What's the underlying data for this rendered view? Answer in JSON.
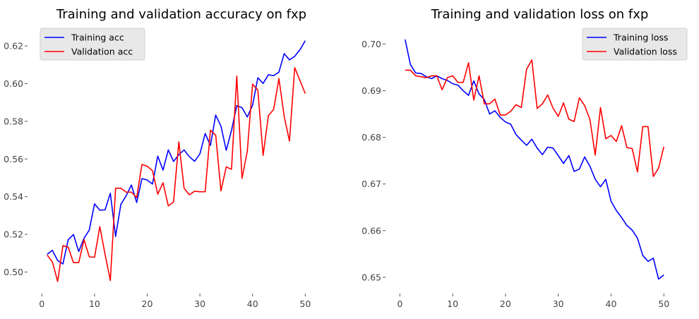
{
  "chart_data": [
    {
      "type": "line",
      "title": "Training and validation accuracy on fxp",
      "xlabel": "",
      "ylabel": "",
      "xlim": [
        -2.45,
        55.45
      ],
      "ylim": [
        0.4893,
        0.6294
      ],
      "xticks": [
        0,
        10,
        20,
        30,
        40,
        50
      ],
      "yticks": [
        0.5,
        0.52,
        0.54,
        0.56,
        0.58,
        0.6,
        0.62
      ],
      "ytick_labels": [
        "0.50",
        "0.52",
        "0.54",
        "0.56",
        "0.58",
        "0.60",
        "0.62"
      ],
      "grid": false,
      "legend_position": "upper-left",
      "x": [
        1,
        2,
        3,
        4,
        5,
        6,
        7,
        8,
        9,
        10,
        11,
        12,
        13,
        14,
        15,
        16,
        17,
        18,
        19,
        20,
        21,
        22,
        23,
        24,
        25,
        26,
        27,
        28,
        29,
        30,
        31,
        32,
        33,
        34,
        35,
        36,
        37,
        38,
        39,
        40,
        41,
        42,
        43,
        44,
        45,
        46,
        47,
        48,
        49,
        50
      ],
      "series": [
        {
          "name": "Training acc",
          "color": "#0000ff",
          "values": [
            0.5094,
            0.5115,
            0.5061,
            0.5043,
            0.5172,
            0.5199,
            0.5109,
            0.5179,
            0.5223,
            0.5362,
            0.5328,
            0.533,
            0.5418,
            0.5189,
            0.5359,
            0.5405,
            0.5462,
            0.5369,
            0.5496,
            0.5488,
            0.5467,
            0.5615,
            0.5541,
            0.5648,
            0.5587,
            0.5623,
            0.5648,
            0.5612,
            0.5588,
            0.5627,
            0.5735,
            0.5672,
            0.5833,
            0.5774,
            0.5646,
            0.5752,
            0.5883,
            0.5872,
            0.5823,
            0.5885,
            0.6031,
            0.6001,
            0.6047,
            0.6042,
            0.6061,
            0.6159,
            0.6126,
            0.6145,
            0.618,
            0.6228
          ]
        },
        {
          "name": "Validation acc",
          "color": "#ff0000",
          "values": [
            0.509,
            0.5054,
            0.495,
            0.514,
            0.5132,
            0.505,
            0.505,
            0.5172,
            0.5081,
            0.5078,
            0.5241,
            0.5094,
            0.4955,
            0.5445,
            0.5445,
            0.5424,
            0.5424,
            0.5395,
            0.5571,
            0.5561,
            0.5538,
            0.5413,
            0.5474,
            0.5351,
            0.5372,
            0.5691,
            0.5445,
            0.541,
            0.5429,
            0.5426,
            0.5426,
            0.5753,
            0.5726,
            0.5431,
            0.5558,
            0.5545,
            0.604,
            0.5497,
            0.5642,
            0.5997,
            0.5966,
            0.5619,
            0.583,
            0.5863,
            0.6027,
            0.5827,
            0.5695,
            0.6085,
            0.6016,
            0.5947
          ]
        }
      ]
    },
    {
      "type": "line",
      "title": "Training and validation loss on fxp",
      "xlabel": "",
      "ylabel": "",
      "xlim": [
        -2.45,
        55.45
      ],
      "ylim": [
        0.6468,
        0.7034
      ],
      "xticks": [
        0,
        10,
        20,
        30,
        40,
        50
      ],
      "yticks": [
        0.65,
        0.66,
        0.67,
        0.68,
        0.69,
        0.7
      ],
      "ytick_labels": [
        "0.65",
        "0.66",
        "0.67",
        "0.68",
        "0.69",
        "0.70"
      ],
      "grid": false,
      "legend_position": "upper-right",
      "x": [
        1,
        2,
        3,
        4,
        5,
        6,
        7,
        8,
        9,
        10,
        11,
        12,
        13,
        14,
        15,
        16,
        17,
        18,
        19,
        20,
        21,
        22,
        23,
        24,
        25,
        26,
        27,
        28,
        29,
        30,
        31,
        32,
        33,
        34,
        35,
        36,
        37,
        38,
        39,
        40,
        41,
        42,
        43,
        44,
        45,
        46,
        47,
        48,
        49,
        50
      ],
      "series": [
        {
          "name": "Training loss",
          "color": "#0000ff",
          "values": [
            0.701,
            0.6956,
            0.6938,
            0.6937,
            0.693,
            0.6926,
            0.6932,
            0.6926,
            0.6922,
            0.6915,
            0.6912,
            0.69,
            0.689,
            0.6921,
            0.6893,
            0.6881,
            0.685,
            0.6857,
            0.6843,
            0.6833,
            0.6828,
            0.6806,
            0.6794,
            0.6783,
            0.6796,
            0.6777,
            0.6763,
            0.6779,
            0.6777,
            0.6761,
            0.6744,
            0.6761,
            0.6727,
            0.6732,
            0.6758,
            0.6738,
            0.671,
            0.6694,
            0.671,
            0.6663,
            0.6643,
            0.6628,
            0.6611,
            0.6601,
            0.6584,
            0.6547,
            0.6534,
            0.6541,
            0.6496,
            0.6505
          ]
        },
        {
          "name": "Validation loss",
          "color": "#ff0000",
          "values": [
            0.6944,
            0.6944,
            0.6932,
            0.693,
            0.6928,
            0.6932,
            0.6932,
            0.6902,
            0.6928,
            0.6932,
            0.6918,
            0.6918,
            0.696,
            0.688,
            0.6932,
            0.6872,
            0.6872,
            0.6882,
            0.6848,
            0.6848,
            0.6856,
            0.687,
            0.6864,
            0.6946,
            0.6966,
            0.6862,
            0.6872,
            0.6891,
            0.6863,
            0.6845,
            0.6874,
            0.6839,
            0.6834,
            0.6885,
            0.6868,
            0.6838,
            0.6762,
            0.6864,
            0.6797,
            0.6804,
            0.6791,
            0.6825,
            0.6778,
            0.6776,
            0.6726,
            0.6823,
            0.6823,
            0.6716,
            0.6734,
            0.678
          ]
        }
      ]
    }
  ]
}
